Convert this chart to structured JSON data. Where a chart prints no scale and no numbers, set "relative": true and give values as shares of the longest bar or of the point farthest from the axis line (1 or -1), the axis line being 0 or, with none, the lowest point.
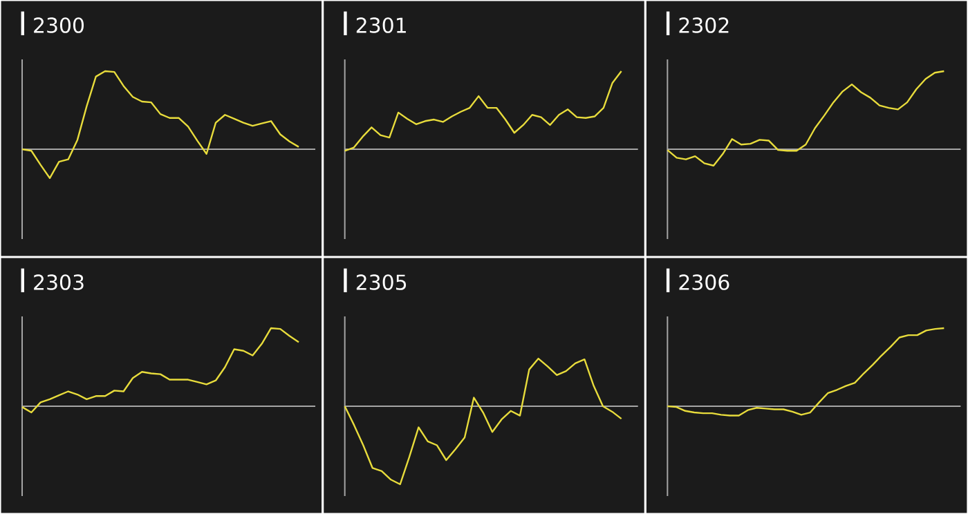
{
  "chart_data": [
    {
      "type": "line",
      "title": "2300",
      "color": "#e8dc3c",
      "relative": true,
      "categories": [
        null,
        null,
        null,
        null,
        null,
        null,
        null,
        null,
        null,
        null,
        null,
        null,
        null,
        null,
        null,
        null,
        null,
        null,
        null,
        null,
        null,
        null,
        null,
        null,
        null,
        null,
        null,
        null,
        null,
        null,
        null
      ],
      "values": [
        0,
        -0.02,
        -0.2,
        -0.37,
        -0.16,
        -0.13,
        0.12,
        0.55,
        0.93,
        1,
        0.99,
        0.81,
        0.67,
        0.61,
        0.6,
        0.45,
        0.4,
        0.4,
        0.29,
        0.11,
        -0.06,
        0.34,
        0.44,
        0.39,
        0.34,
        0.3,
        0.33,
        0.36,
        0.19,
        0.1,
        0.03
      ]
    },
    {
      "type": "line",
      "title": "2301",
      "color": "#e8dc3c",
      "relative": true,
      "categories": [
        null,
        null,
        null,
        null,
        null,
        null,
        null,
        null,
        null,
        null,
        null,
        null,
        null,
        null,
        null,
        null,
        null,
        null,
        null,
        null,
        null,
        null,
        null,
        null,
        null,
        null,
        null,
        null,
        null,
        null,
        null,
        null
      ],
      "values": [
        -0.02,
        0.02,
        0.16,
        0.28,
        0.18,
        0.15,
        0.47,
        0.39,
        0.32,
        0.36,
        0.38,
        0.35,
        0.42,
        0.48,
        0.53,
        0.68,
        0.53,
        0.53,
        0.38,
        0.21,
        0.31,
        0.44,
        0.41,
        0.31,
        0.44,
        0.51,
        0.41,
        0.4,
        0.42,
        0.53,
        0.85,
        1
      ]
    },
    {
      "type": "line",
      "title": "2302",
      "color": "#e8dc3c",
      "relative": true,
      "categories": [
        null,
        null,
        null,
        null,
        null,
        null,
        null,
        null,
        null,
        null,
        null,
        null,
        null,
        null,
        null,
        null,
        null,
        null,
        null,
        null,
        null,
        null,
        null,
        null,
        null,
        null,
        null,
        null,
        null,
        null,
        null
      ],
      "values": [
        -0.01,
        -0.11,
        -0.13,
        -0.09,
        -0.18,
        -0.21,
        -0.06,
        0.13,
        0.06,
        0.07,
        0.12,
        0.11,
        -0.01,
        -0.02,
        -0.02,
        0.06,
        0.27,
        0.43,
        0.6,
        0.74,
        0.83,
        0.73,
        0.66,
        0.56,
        0.53,
        0.51,
        0.6,
        0.77,
        0.9,
        0.98,
        1
      ]
    },
    {
      "type": "line",
      "title": "2303",
      "color": "#e8dc3c",
      "relative": true,
      "categories": [
        null,
        null,
        null,
        null,
        null,
        null,
        null,
        null,
        null,
        null,
        null,
        null,
        null,
        null,
        null,
        null,
        null,
        null,
        null,
        null,
        null,
        null,
        null,
        null,
        null,
        null,
        null,
        null,
        null,
        null,
        null
      ],
      "values": [
        -0.01,
        -0.08,
        0.05,
        0.09,
        0.14,
        0.19,
        0.15,
        0.09,
        0.13,
        0.13,
        0.2,
        0.19,
        0.36,
        0.44,
        0.42,
        0.41,
        0.34,
        0.34,
        0.34,
        0.31,
        0.28,
        0.33,
        0.5,
        0.73,
        0.71,
        0.65,
        0.8,
        1,
        0.99,
        0.9,
        0.82
      ]
    },
    {
      "type": "line",
      "title": "2305",
      "color": "#e8dc3c",
      "relative": true,
      "categories": [
        null,
        null,
        null,
        null,
        null,
        null,
        null,
        null,
        null,
        null,
        null,
        null,
        null,
        null,
        null,
        null,
        null,
        null,
        null,
        null,
        null,
        null,
        null,
        null,
        null,
        null,
        null,
        null,
        null,
        null,
        null
      ],
      "values": [
        0,
        -0.24,
        -0.5,
        -0.79,
        -0.83,
        -0.94,
        -1,
        -0.65,
        -0.27,
        -0.45,
        -0.5,
        -0.69,
        -0.55,
        -0.4,
        0.11,
        -0.08,
        -0.33,
        -0.17,
        -0.06,
        -0.12,
        0.47,
        0.61,
        0.51,
        0.4,
        0.45,
        0.55,
        0.6,
        0.26,
        0,
        -0.07,
        -0.16
      ]
    },
    {
      "type": "line",
      "title": "2306",
      "color": "#e8dc3c",
      "relative": true,
      "categories": [
        null,
        null,
        null,
        null,
        null,
        null,
        null,
        null,
        null,
        null,
        null,
        null,
        null,
        null,
        null,
        null,
        null,
        null,
        null,
        null,
        null,
        null,
        null,
        null,
        null,
        null,
        null,
        null,
        null,
        null,
        null,
        null
      ],
      "values": [
        0,
        -0.01,
        -0.06,
        -0.08,
        -0.09,
        -0.09,
        -0.11,
        -0.12,
        -0.12,
        -0.05,
        -0.02,
        -0.03,
        -0.04,
        -0.04,
        -0.07,
        -0.11,
        -0.08,
        0.05,
        0.17,
        0.21,
        0.26,
        0.3,
        0.42,
        0.53,
        0.65,
        0.76,
        0.88,
        0.91,
        0.91,
        0.97,
        0.99,
        1
      ]
    }
  ]
}
